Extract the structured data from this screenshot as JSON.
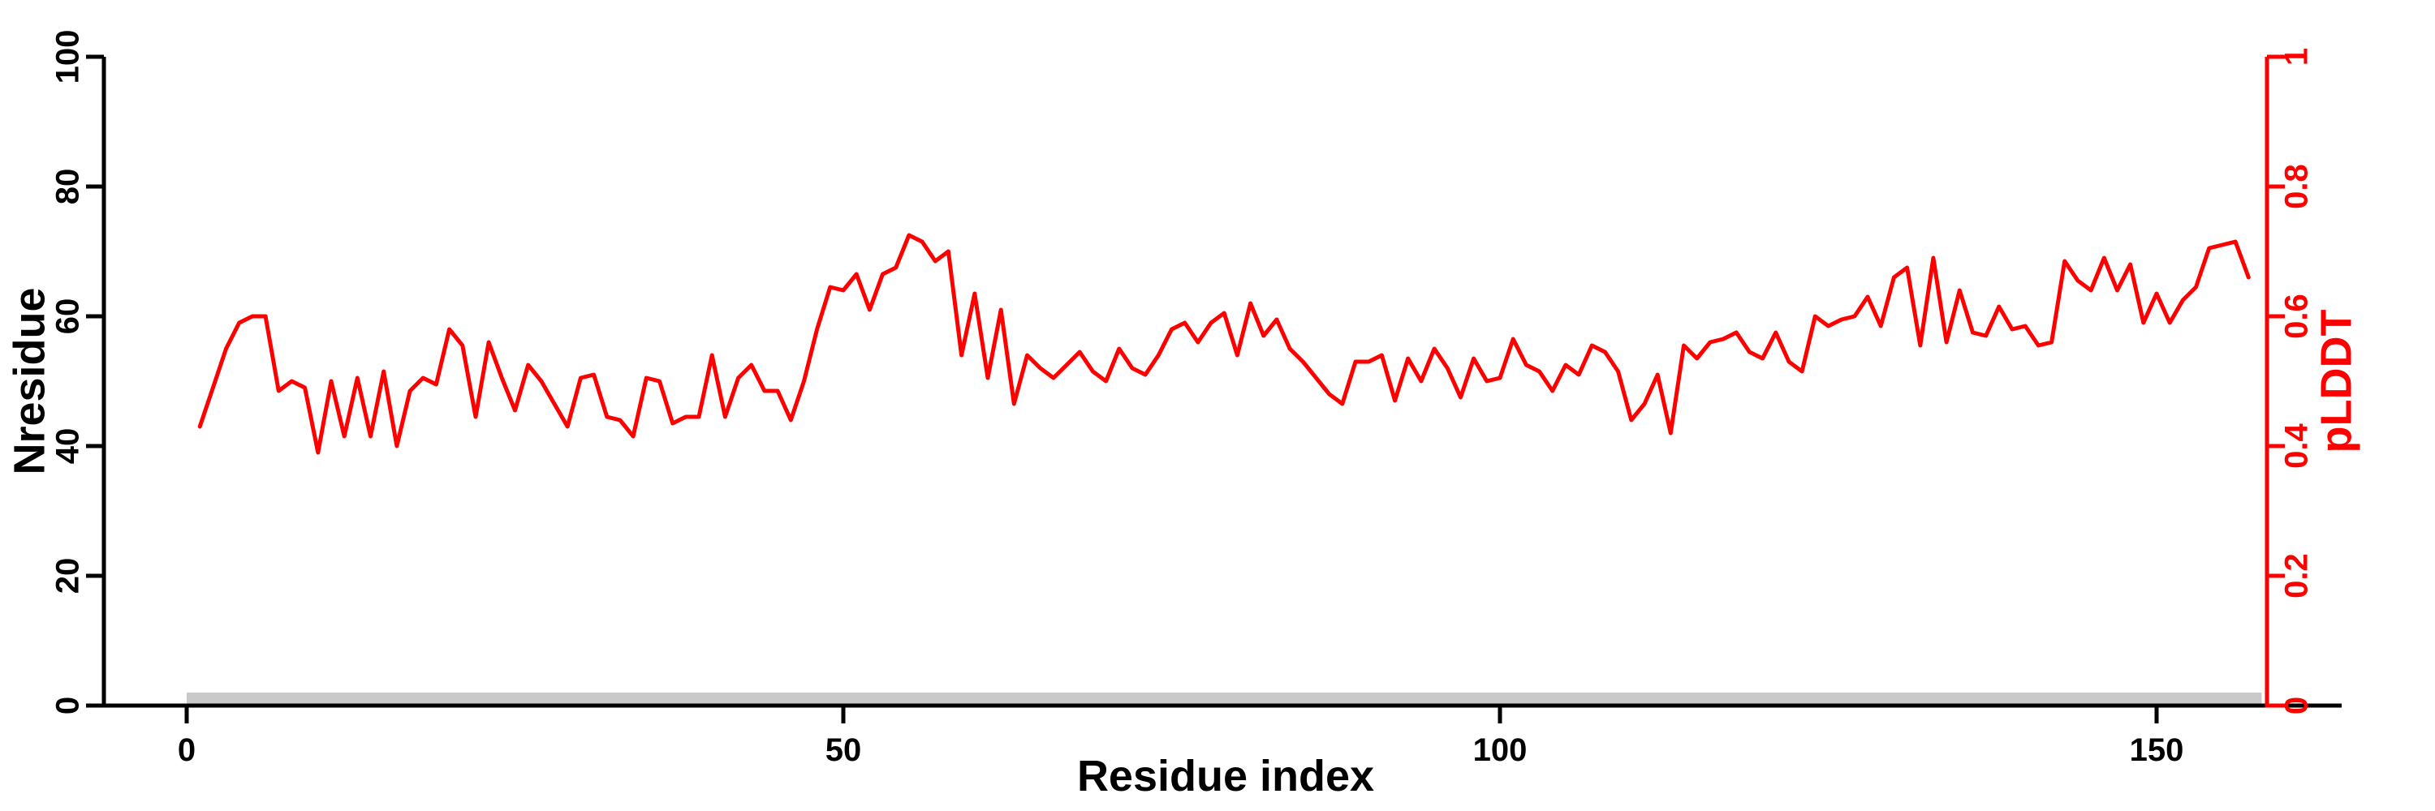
{
  "background": "#ffffff",
  "chart_data": {
    "type": "line",
    "title": "",
    "xlabel": "Residue index",
    "ylabel_left": "Nresidue",
    "ylabel_right": "pLDDT",
    "x_axis": {
      "ticks": [
        0,
        50,
        100,
        150
      ],
      "tick_labels": [
        "0",
        "50",
        "100",
        "150"
      ],
      "range_shown": [
        0,
        157
      ]
    },
    "left_axis": {
      "label": "Nresidue",
      "ticks": [
        0,
        20,
        40,
        60,
        80,
        100
      ],
      "tick_labels": [
        "0",
        "20",
        "40",
        "60",
        "80",
        "100"
      ],
      "range": [
        0,
        100
      ],
      "color": "#000000"
    },
    "right_axis": {
      "label": "pLDDT",
      "ticks": [
        0,
        0.2,
        0.4,
        0.6,
        0.8,
        1
      ],
      "tick_labels": [
        "0",
        "0.2",
        "0.4",
        "0.6",
        "0.8",
        "1"
      ],
      "range": [
        0,
        1
      ],
      "color": "#ff0000"
    },
    "grid": false,
    "legend": "none",
    "series": [
      {
        "name": "pLDDT",
        "type": "line",
        "axis": "right",
        "color": "#ff0000",
        "x_start": 1,
        "values": [
          0.43,
          0.49,
          0.55,
          0.59,
          0.6,
          0.6,
          0.485,
          0.5,
          0.49,
          0.39,
          0.5,
          0.415,
          0.505,
          0.415,
          0.515,
          0.4,
          0.485,
          0.505,
          0.495,
          0.58,
          0.555,
          0.445,
          0.56,
          0.505,
          0.455,
          0.525,
          0.5,
          0.465,
          0.43,
          0.505,
          0.51,
          0.445,
          0.44,
          0.415,
          0.505,
          0.5,
          0.435,
          0.445,
          0.445,
          0.54,
          0.445,
          0.505,
          0.525,
          0.485,
          0.485,
          0.44,
          0.5,
          0.58,
          0.645,
          0.64,
          0.665,
          0.61,
          0.665,
          0.675,
          0.725,
          0.715,
          0.685,
          0.7,
          0.54,
          0.635,
          0.505,
          0.61,
          0.465,
          0.54,
          0.52,
          0.505,
          0.525,
          0.545,
          0.515,
          0.5,
          0.55,
          0.52,
          0.51,
          0.54,
          0.58,
          0.59,
          0.56,
          0.59,
          0.605,
          0.54,
          0.62,
          0.57,
          0.595,
          0.55,
          0.53,
          0.505,
          0.48,
          0.465,
          0.53,
          0.53,
          0.54,
          0.47,
          0.535,
          0.5,
          0.55,
          0.52,
          0.475,
          0.535,
          0.5,
          0.505,
          0.565,
          0.525,
          0.515,
          0.485,
          0.525,
          0.51,
          0.555,
          0.545,
          0.515,
          0.44,
          0.465,
          0.51,
          0.42,
          0.555,
          0.535,
          0.56,
          0.565,
          0.575,
          0.545,
          0.535,
          0.575,
          0.53,
          0.515,
          0.6,
          0.585,
          0.595,
          0.6,
          0.63,
          0.585,
          0.66,
          0.675,
          0.555,
          0.69,
          0.56,
          0.64,
          0.575,
          0.57,
          0.615,
          0.58,
          0.585,
          0.555,
          0.56,
          0.685,
          0.655,
          0.64,
          0.69,
          0.64,
          0.68,
          0.59,
          0.635,
          0.59,
          0.625,
          0.645,
          0.705,
          0.71,
          0.715,
          0.66
        ]
      },
      {
        "name": "Nresidue",
        "type": "bar-band",
        "axis": "left",
        "color": "#c9c9c9",
        "x_range": [
          0,
          158
        ],
        "value": 2
      }
    ]
  }
}
